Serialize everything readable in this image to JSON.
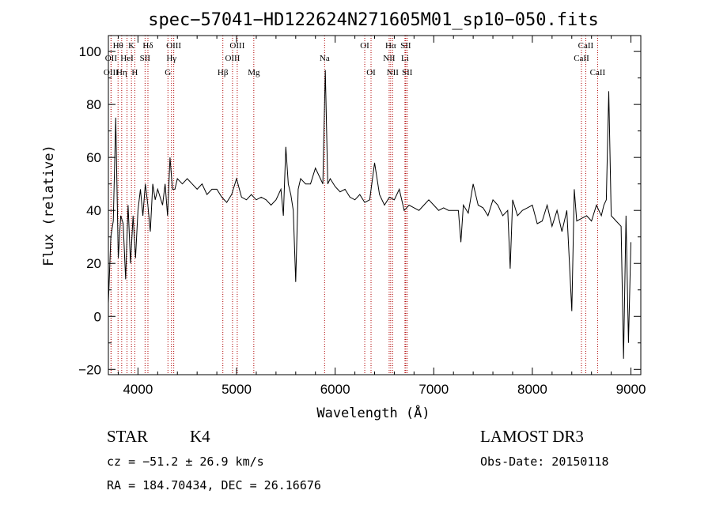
{
  "chart_data": {
    "type": "line",
    "title": "spec−57041−HD122624N271605M01_sp10−050.fits",
    "xlabel": "Wavelength (Å)",
    "ylabel": "Flux (relative)",
    "xlim": [
      3700,
      9100
    ],
    "ylim": [
      -22,
      106
    ],
    "xticks": [
      4000,
      5000,
      6000,
      7000,
      8000,
      9000
    ],
    "yticks": [
      -20,
      0,
      20,
      40,
      60,
      80,
      100
    ],
    "ytick_labels": [
      "−20",
      "0",
      "20",
      "40",
      "60",
      "80",
      "100"
    ],
    "grid": false,
    "series": [
      {
        "x": [
          3700,
          3725,
          3750,
          3775,
          3800,
          3825,
          3850,
          3875,
          3900,
          3925,
          3950,
          3975,
          4000,
          4025,
          4050,
          4075,
          4100,
          4125,
          4150,
          4175,
          4200,
          4225,
          4250,
          4275,
          4300,
          4325,
          4350,
          4375,
          4400,
          4450,
          4500,
          4550,
          4600,
          4650,
          4700,
          4750,
          4800,
          4850,
          4900,
          4950,
          5000,
          5050,
          5100,
          5150,
          5200,
          5250,
          5300,
          5350,
          5400,
          5450,
          5475,
          5500,
          5525,
          5550,
          5575,
          5600,
          5625,
          5650,
          5700,
          5750,
          5800,
          5850,
          5875,
          5900,
          5925,
          5950,
          6000,
          6050,
          6100,
          6150,
          6200,
          6250,
          6300,
          6350,
          6400,
          6450,
          6500,
          6550,
          6600,
          6650,
          6700,
          6750,
          6800,
          6850,
          6900,
          6950,
          7000,
          7050,
          7100,
          7150,
          7200,
          7250,
          7275,
          7300,
          7350,
          7400,
          7450,
          7500,
          7550,
          7600,
          7650,
          7700,
          7750,
          7775,
          7800,
          7850,
          7900,
          7950,
          8000,
          8050,
          8100,
          8150,
          8200,
          8250,
          8300,
          8350,
          8400,
          8425,
          8450,
          8500,
          8550,
          8600,
          8650,
          8700,
          8725,
          8750,
          8775,
          8800,
          8850,
          8900,
          8925,
          8950,
          8975,
          9000
        ],
        "y": [
          5,
          30,
          36,
          75,
          22,
          38,
          35,
          14,
          42,
          20,
          38,
          22,
          40,
          48,
          38,
          50,
          42,
          32,
          50,
          44,
          48,
          45,
          42,
          50,
          38,
          60,
          48,
          48,
          52,
          50,
          52,
          50,
          48,
          50,
          46,
          48,
          48,
          45,
          43,
          46,
          52,
          45,
          44,
          46,
          44,
          45,
          44,
          42,
          44,
          48,
          38,
          64,
          50,
          46,
          40,
          13,
          48,
          52,
          50,
          50,
          56,
          52,
          50,
          93,
          50,
          52,
          49,
          47,
          48,
          45,
          44,
          46,
          43,
          44,
          58,
          46,
          42,
          45,
          44,
          48,
          40,
          42,
          41,
          40,
          42,
          44,
          42,
          40,
          41,
          40,
          40,
          40,
          28,
          42,
          39,
          50,
          42,
          41,
          38,
          44,
          42,
          38,
          40,
          18,
          44,
          38,
          40,
          41,
          42,
          35,
          36,
          42,
          34,
          40,
          32,
          40,
          2,
          48,
          36,
          37,
          38,
          36,
          42,
          38,
          42,
          44,
          85,
          38,
          36,
          34,
          -16,
          38,
          -10,
          28
        ]
      }
    ],
    "spectral_lines": [
      {
        "label": "Hθ",
        "wavelength": 3798,
        "row": 1
      },
      {
        "label": "OII",
        "wavelength": 3727,
        "row": 2
      },
      {
        "label": "OIII",
        "wavelength": 3727,
        "row": 3
      },
      {
        "label": "Hη",
        "wavelength": 3835,
        "row": 3
      },
      {
        "label": "HeI",
        "wavelength": 3889,
        "row": 2
      },
      {
        "label": "K",
        "wavelength": 3934,
        "row": 1
      },
      {
        "label": "H",
        "wavelength": 3968,
        "row": 3
      },
      {
        "label": "Hδ",
        "wavelength": 4101,
        "row": 1
      },
      {
        "label": "SII",
        "wavelength": 4072,
        "row": 2
      },
      {
        "label": "OIII",
        "wavelength": 4363,
        "row": 1
      },
      {
        "label": "Hγ",
        "wavelength": 4340,
        "row": 2
      },
      {
        "label": "G",
        "wavelength": 4304,
        "row": 3
      },
      {
        "label": "Hβ",
        "wavelength": 4861,
        "row": 3
      },
      {
        "label": "OIII",
        "wavelength": 5007,
        "row": 1
      },
      {
        "label": "OIII",
        "wavelength": 4959,
        "row": 2
      },
      {
        "label": "Mg",
        "wavelength": 5175,
        "row": 3
      },
      {
        "label": "Na",
        "wavelength": 5893,
        "row": 2
      },
      {
        "label": "OI",
        "wavelength": 6300,
        "row": 1
      },
      {
        "label": "OI",
        "wavelength": 6364,
        "row": 3
      },
      {
        "label": "Hα",
        "wavelength": 6563,
        "row": 1
      },
      {
        "label": "NII",
        "wavelength": 6548,
        "row": 2
      },
      {
        "label": "NII",
        "wavelength": 6583,
        "row": 3
      },
      {
        "label": "SII",
        "wavelength": 6716,
        "row": 1
      },
      {
        "label": "Li",
        "wavelength": 6708,
        "row": 2
      },
      {
        "label": "SII",
        "wavelength": 6731,
        "row": 3
      },
      {
        "label": "CaII",
        "wavelength": 8542,
        "row": 1
      },
      {
        "label": "CaII",
        "wavelength": 8498,
        "row": 2
      },
      {
        "label": "CaII",
        "wavelength": 8662,
        "row": 3
      }
    ]
  },
  "info": {
    "class": "STAR",
    "subclass": "K4",
    "survey": "LAMOST DR3",
    "cz": "cz = −51.2 ± 26.9 km/s",
    "obs_date": "Obs-Date: 20150118",
    "coords": "RA = 184.70434, DEC =  26.16676"
  },
  "colors": {
    "line": "#000000",
    "marker_lines": "#b00000"
  }
}
